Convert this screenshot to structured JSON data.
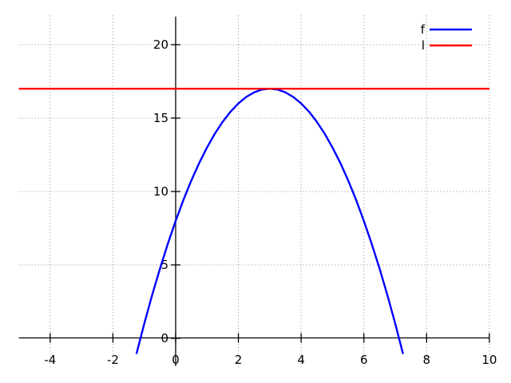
{
  "figure": {
    "background": "#ffffff",
    "axis_color": "#000000",
    "grid_color": "#909090",
    "text_color": "#000000"
  },
  "chart_data": {
    "type": "line",
    "title": "",
    "xlabel": "",
    "ylabel": "",
    "xlim": [
      -5,
      10
    ],
    "ylim": [
      -2,
      22
    ],
    "grid": "dotted",
    "axes_style": "zero-crossing",
    "x_ticks": {
      "values": [
        -4,
        -2,
        0,
        2,
        4,
        6,
        8,
        10
      ],
      "labels": [
        "-4",
        "-2",
        "0",
        "2",
        "4",
        "6",
        "8",
        "10"
      ]
    },
    "y_ticks": {
      "values": [
        0,
        5,
        10,
        15,
        20
      ],
      "labels": [
        "0",
        "5",
        "10",
        "15",
        "20"
      ]
    },
    "legend": {
      "position": "top-right",
      "entries": [
        {
          "label": "f",
          "color": "#0000ff"
        },
        {
          "label": "l",
          "color": "#ff0000"
        }
      ]
    },
    "series": [
      {
        "name": "f",
        "expression": "f(x) = 17 - (x-3)^2",
        "color": "#0000ff",
        "width": 2.4,
        "points": [
          [
            -1.25,
            -1.0625
          ],
          [
            -1.0,
            1.0
          ],
          [
            -0.75,
            2.9375
          ],
          [
            -0.5,
            4.75
          ],
          [
            -0.25,
            6.4375
          ],
          [
            0.0,
            8.0
          ],
          [
            0.25,
            9.4375
          ],
          [
            0.5,
            10.75
          ],
          [
            0.75,
            11.9375
          ],
          [
            1.0,
            13.0
          ],
          [
            1.25,
            13.9375
          ],
          [
            1.5,
            14.75
          ],
          [
            1.75,
            15.4375
          ],
          [
            2.0,
            16.0
          ],
          [
            2.25,
            16.4375
          ],
          [
            2.5,
            16.75
          ],
          [
            2.75,
            16.9375
          ],
          [
            3.0,
            17.0
          ],
          [
            3.25,
            16.9375
          ],
          [
            3.5,
            16.75
          ],
          [
            3.75,
            16.4375
          ],
          [
            4.0,
            16.0
          ],
          [
            4.25,
            15.4375
          ],
          [
            4.5,
            14.75
          ],
          [
            4.75,
            13.9375
          ],
          [
            5.0,
            13.0
          ],
          [
            5.25,
            11.9375
          ],
          [
            5.5,
            10.75
          ],
          [
            5.75,
            9.4375
          ],
          [
            6.0,
            8.0
          ],
          [
            6.25,
            6.4375
          ],
          [
            6.5,
            4.75
          ],
          [
            6.75,
            2.9375
          ],
          [
            7.0,
            1.0
          ],
          [
            7.25,
            -1.0625
          ]
        ]
      },
      {
        "name": "l",
        "expression": "l(x) = 17",
        "color": "#ff0000",
        "width": 2.4,
        "points": [
          [
            -5,
            17
          ],
          [
            10,
            17
          ]
        ]
      }
    ]
  }
}
